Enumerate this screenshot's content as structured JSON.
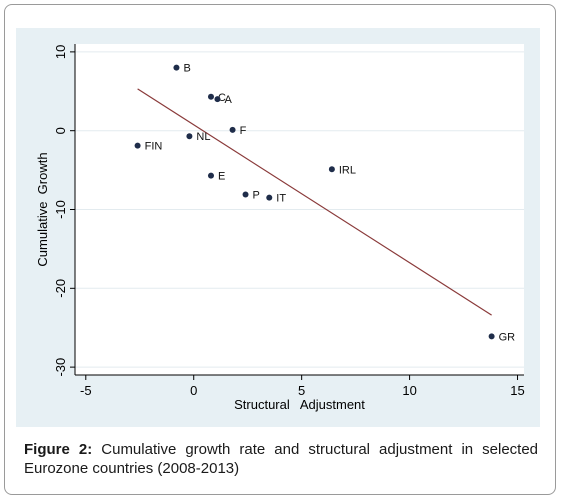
{
  "caption": {
    "label": "Figure 2:",
    "text": "Cumulative growth rate and structural adjustment in selected Eurozone countries (2008-2013)"
  },
  "chart_data": {
    "type": "scatter",
    "xlabel": "Structural   Adjustment",
    "ylabel": "Cumulative  Growth",
    "xlim": [
      -5.5,
      15.3
    ],
    "ylim": [
      -31,
      11
    ],
    "xticks": [
      -5,
      0,
      5,
      10,
      15
    ],
    "yticks": [
      10,
      0,
      -10,
      -20,
      -30
    ],
    "points": [
      {
        "label": "B",
        "x": -0.8,
        "y": 8.0
      },
      {
        "label": "C",
        "x": 0.8,
        "y": 4.3
      },
      {
        "label": "A",
        "x": 1.1,
        "y": 4.0
      },
      {
        "label": "F",
        "x": 1.8,
        "y": 0.1
      },
      {
        "label": "NL",
        "x": -0.2,
        "y": -0.7
      },
      {
        "label": "FIN",
        "x": -2.6,
        "y": -1.9
      },
      {
        "label": "E",
        "x": 0.8,
        "y": -5.7
      },
      {
        "label": "P",
        "x": 2.4,
        "y": -8.1
      },
      {
        "label": "IT",
        "x": 3.5,
        "y": -8.5
      },
      {
        "label": "IRL",
        "x": 6.4,
        "y": -4.9
      },
      {
        "label": "GR",
        "x": 13.8,
        "y": -26.1
      }
    ],
    "fit_line": {
      "x": [
        -2.6,
        13.8
      ],
      "y": [
        5.3,
        -23.4
      ]
    },
    "grid": "horizontal",
    "colors": {
      "points": "#1f2d4a",
      "fit_line": "#8a3a3a",
      "background": "#e7f0f4",
      "plot": "#ffffff"
    }
  }
}
